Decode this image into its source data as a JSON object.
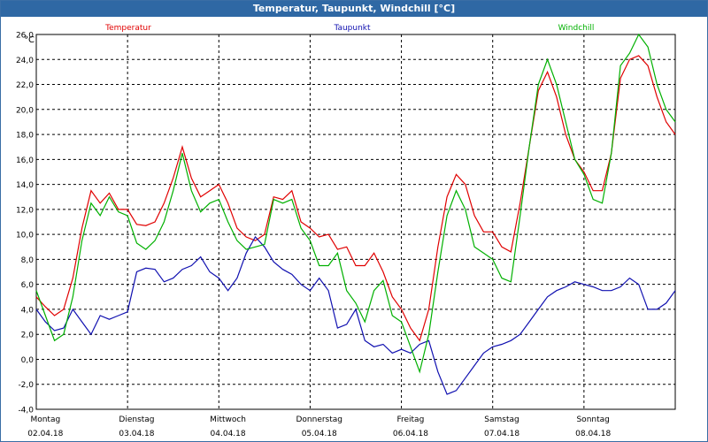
{
  "window": {
    "title": "Temperatur, Taupunkt, Windchill [°C]"
  },
  "chart_data": {
    "type": "line",
    "title": "Temperatur, Taupunkt, Windchill [°C]",
    "ylabel": "°C",
    "ylim": [
      -4,
      26
    ],
    "yticks": [
      "26,0",
      "24,0",
      "22,0",
      "20,0",
      "18,0",
      "16,0",
      "14,0",
      "12,0",
      "10,0",
      "8,0",
      "6,0",
      "4,0",
      "2,0",
      "0,0",
      "-2,0",
      "-4,0"
    ],
    "day_labels": [
      "Montag",
      "Dienstag",
      "Mittwoch",
      "Donnerstag",
      "Freitag",
      "Samstag",
      "Sonntag"
    ],
    "date_labels": [
      "02.04.18",
      "03.04.18",
      "04.04.18",
      "05.04.18",
      "06.04.18",
      "07.04.18",
      "08.04.18"
    ],
    "x_unit": "days since 02.04.18 00:00",
    "xlim": [
      0,
      7
    ],
    "grid": true,
    "legend": "top",
    "series": [
      {
        "name": "Temperatur",
        "color": "#e00000",
        "x": [
          0,
          0.1,
          0.2,
          0.3,
          0.4,
          0.5,
          0.6,
          0.7,
          0.8,
          0.9,
          1,
          1.1,
          1.2,
          1.3,
          1.4,
          1.5,
          1.6,
          1.7,
          1.8,
          1.9,
          2,
          2.1,
          2.2,
          2.3,
          2.4,
          2.5,
          2.6,
          2.7,
          2.8,
          2.9,
          3,
          3.1,
          3.2,
          3.3,
          3.4,
          3.5,
          3.6,
          3.7,
          3.8,
          3.9,
          4,
          4.1,
          4.2,
          4.3,
          4.4,
          4.5,
          4.6,
          4.7,
          4.8,
          4.9,
          5,
          5.1,
          5.2,
          5.3,
          5.4,
          5.5,
          5.6,
          5.7,
          5.8,
          5.9,
          6,
          6.1,
          6.2,
          6.3,
          6.4,
          6.5,
          6.6,
          6.7,
          6.8,
          6.9,
          7
        ],
        "values": [
          5.0,
          4.2,
          3.5,
          4.0,
          6.5,
          10.5,
          13.5,
          12.5,
          13.3,
          12.0,
          12.0,
          10.8,
          10.7,
          11.0,
          12.5,
          14.5,
          17.0,
          14.5,
          13.0,
          13.5,
          14.0,
          12.5,
          10.5,
          9.8,
          9.5,
          10.0,
          13.0,
          12.8,
          13.5,
          11.0,
          10.5,
          9.8,
          10.0,
          8.8,
          9.0,
          7.5,
          7.5,
          8.5,
          7.0,
          5.0,
          4.0,
          2.5,
          1.5,
          4.0,
          9.0,
          13.0,
          14.8,
          14.0,
          11.5,
          10.2,
          10.2,
          9.0,
          8.6,
          12.5,
          17.0,
          21.5,
          23.0,
          21.0,
          18.0,
          16.0,
          15.0,
          13.5,
          13.5,
          16.5,
          22.5,
          24.0,
          24.3,
          23.5,
          21.0,
          19.0,
          18.0
        ]
      },
      {
        "name": "Taupunkt",
        "color": "#1010b0",
        "x": [
          0,
          0.1,
          0.2,
          0.3,
          0.4,
          0.5,
          0.6,
          0.7,
          0.8,
          0.9,
          1,
          1.1,
          1.2,
          1.3,
          1.4,
          1.5,
          1.6,
          1.7,
          1.8,
          1.9,
          2,
          2.1,
          2.2,
          2.3,
          2.4,
          2.5,
          2.6,
          2.7,
          2.8,
          2.9,
          3,
          3.1,
          3.2,
          3.3,
          3.4,
          3.5,
          3.6,
          3.7,
          3.8,
          3.9,
          4,
          4.1,
          4.2,
          4.3,
          4.4,
          4.5,
          4.6,
          4.7,
          4.8,
          4.9,
          5,
          5.1,
          5.2,
          5.3,
          5.4,
          5.5,
          5.6,
          5.7,
          5.8,
          5.9,
          6,
          6.1,
          6.2,
          6.3,
          6.4,
          6.5,
          6.6,
          6.7,
          6.8,
          6.9,
          7
        ],
        "values": [
          4.0,
          3.0,
          2.3,
          2.5,
          4.0,
          3.0,
          2.0,
          3.5,
          3.2,
          3.5,
          3.8,
          7.0,
          7.3,
          7.2,
          6.2,
          6.5,
          7.2,
          7.5,
          8.2,
          7.0,
          6.5,
          5.5,
          6.5,
          8.5,
          9.8,
          9.0,
          7.8,
          7.2,
          6.8,
          6.0,
          5.5,
          6.5,
          5.5,
          2.5,
          2.8,
          4.0,
          1.5,
          1.0,
          1.2,
          0.5,
          0.8,
          0.5,
          1.2,
          1.5,
          -1.0,
          -2.8,
          -2.5,
          -1.5,
          -0.5,
          0.5,
          1.0,
          1.2,
          1.5,
          2.0,
          3.0,
          4.0,
          5.0,
          5.5,
          5.8,
          6.2,
          6.0,
          5.8,
          5.5,
          5.5,
          5.8,
          6.5,
          6.0,
          4.0,
          4.0,
          4.5,
          5.5
        ]
      },
      {
        "name": "Windchill",
        "color": "#00b000",
        "x": [
          0,
          0.1,
          0.2,
          0.3,
          0.4,
          0.5,
          0.6,
          0.7,
          0.8,
          0.9,
          1,
          1.1,
          1.2,
          1.3,
          1.4,
          1.5,
          1.6,
          1.7,
          1.8,
          1.9,
          2,
          2.1,
          2.2,
          2.3,
          2.4,
          2.5,
          2.6,
          2.7,
          2.8,
          2.9,
          3,
          3.1,
          3.2,
          3.3,
          3.4,
          3.5,
          3.6,
          3.7,
          3.8,
          3.9,
          4,
          4.1,
          4.2,
          4.3,
          4.4,
          4.5,
          4.6,
          4.7,
          4.8,
          4.9,
          5,
          5.1,
          5.2,
          5.3,
          5.4,
          5.5,
          5.6,
          5.7,
          5.8,
          5.9,
          6,
          6.1,
          6.2,
          6.3,
          6.4,
          6.5,
          6.6,
          6.7,
          6.8,
          6.9,
          7
        ],
        "values": [
          5.5,
          3.5,
          1.5,
          2.0,
          5.0,
          9.5,
          12.5,
          11.5,
          13.0,
          11.8,
          11.5,
          9.3,
          8.8,
          9.5,
          11.0,
          13.5,
          16.5,
          13.5,
          11.8,
          12.5,
          12.8,
          11.0,
          9.5,
          8.8,
          9.0,
          9.2,
          12.8,
          12.5,
          12.8,
          10.5,
          9.5,
          7.5,
          7.5,
          8.5,
          5.5,
          4.5,
          3.0,
          5.5,
          6.3,
          3.5,
          3.0,
          1.0,
          -1.0,
          2.0,
          7.0,
          11.5,
          13.5,
          12.0,
          9.0,
          8.5,
          8.0,
          6.5,
          6.2,
          11.5,
          17.0,
          22.0,
          24.0,
          22.0,
          19.0,
          16.0,
          14.8,
          12.8,
          12.5,
          16.5,
          23.5,
          24.5,
          26.0,
          25.0,
          22.0,
          20.0,
          19.0
        ]
      }
    ]
  }
}
